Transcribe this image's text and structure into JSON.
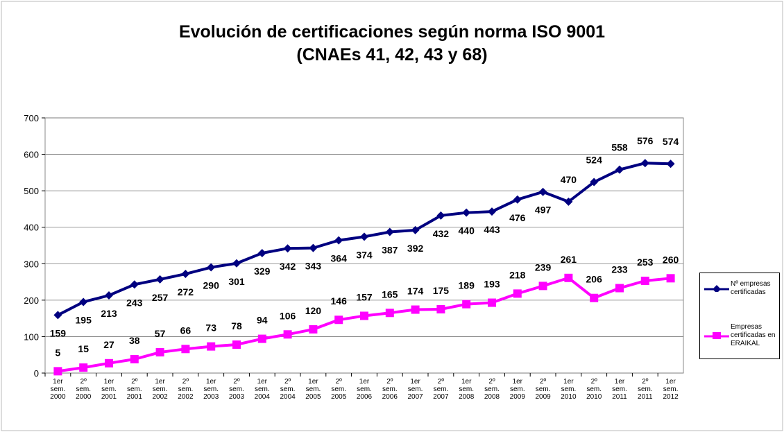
{
  "chart_data": {
    "type": "line",
    "title": "Evolución de certificaciones según norma ISO 9001",
    "subtitle": "(CNAEs 41, 42, 43 y 68)",
    "categories": [
      [
        "1er",
        "sem.",
        "2000"
      ],
      [
        "2º",
        "sem.",
        "2000"
      ],
      [
        "1er",
        "sem.",
        "2001"
      ],
      [
        "2º",
        "sem.",
        "2001"
      ],
      [
        "1er",
        "sem.",
        "2002"
      ],
      [
        "2º",
        "sem.",
        "2002"
      ],
      [
        "1er",
        "sem.",
        "2003"
      ],
      [
        "2º",
        "sem.",
        "2003"
      ],
      [
        "1er",
        "sem.",
        "2004"
      ],
      [
        "2º",
        "sem.",
        "2004"
      ],
      [
        "1er",
        "sem.",
        "2005"
      ],
      [
        "2º",
        "sem.",
        "2005"
      ],
      [
        "1er",
        "sem.",
        "2006"
      ],
      [
        "2º",
        "sem.",
        "2006"
      ],
      [
        "1er",
        "sem.",
        "2007"
      ],
      [
        "2º",
        "sem.",
        "2007"
      ],
      [
        "1er",
        "sem.",
        "2008"
      ],
      [
        "2º",
        "sem.",
        "2008"
      ],
      [
        "1er",
        "sem.",
        "2009"
      ],
      [
        "2º",
        "sem.",
        "2009"
      ],
      [
        "1er",
        "sem.",
        "2010"
      ],
      [
        "2º",
        "sem.",
        "2010"
      ],
      [
        "1er",
        "sem.",
        "2011"
      ],
      [
        "2º",
        "sem.",
        "2011"
      ],
      [
        "1er",
        "sem.",
        "2012"
      ]
    ],
    "series": [
      {
        "name": "Nº empresas certificadas",
        "color": "#000080",
        "marker": "diamond",
        "values": [
          159,
          195,
          213,
          243,
          257,
          272,
          290,
          301,
          329,
          342,
          343,
          364,
          374,
          387,
          392,
          432,
          440,
          443,
          476,
          497,
          470,
          524,
          558,
          576,
          574
        ]
      },
      {
        "name": "Empresas certificadas en ERAIKAL",
        "color": "#ff00ff",
        "marker": "square",
        "values": [
          5,
          15,
          27,
          38,
          57,
          66,
          73,
          78,
          94,
          106,
          120,
          146,
          157,
          165,
          174,
          175,
          189,
          193,
          218,
          239,
          261,
          206,
          233,
          253,
          260
        ]
      }
    ],
    "ylim": [
      0,
      700
    ],
    "yticks": [
      0,
      100,
      200,
      300,
      400,
      500,
      600,
      700
    ],
    "grid": true,
    "legend": "right"
  }
}
